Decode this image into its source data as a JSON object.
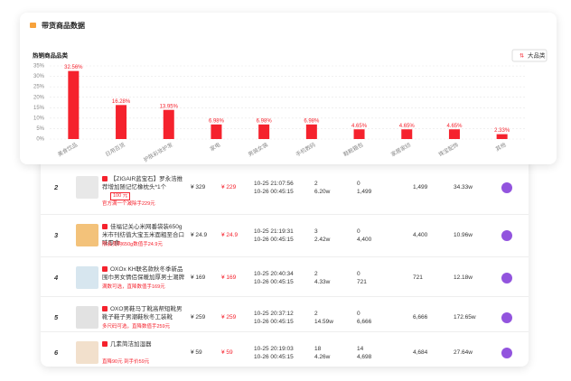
{
  "header": {
    "title": "带货商品数据"
  },
  "chart_data": {
    "type": "bar",
    "title": "热销商品品类",
    "button": "大品类",
    "categories": [
      "美食饮品",
      "日用百货",
      "护肤彩妆护发",
      "家电",
      "男装女装",
      "手机数码",
      "鞋靴箱包",
      "家居家纺",
      "珠宝配饰",
      "其他"
    ],
    "values": [
      32.56,
      16.28,
      13.95,
      6.98,
      6.98,
      6.98,
      4.65,
      4.65,
      4.65,
      2.33
    ],
    "value_labels": [
      "32.56%",
      "16.28%",
      "13.95%",
      "6.98%",
      "6.98%",
      "6.98%",
      "4.65%",
      "4.65%",
      "4.65%",
      "2.33%"
    ],
    "color": "#f5222d",
    "ylim": [
      0,
      35
    ],
    "yticks": [
      {
        "value": 0,
        "label": "0%"
      },
      {
        "value": 5,
        "label": "5%"
      },
      {
        "value": 10,
        "label": "10%"
      },
      {
        "value": 15,
        "label": "15%"
      },
      {
        "value": 20,
        "label": "20%"
      },
      {
        "value": 25,
        "label": "25%"
      },
      {
        "value": 30,
        "label": "30%"
      },
      {
        "value": 35,
        "label": "35%"
      }
    ],
    "grid": true
  },
  "table": {
    "rows": [
      {
        "rank": "2",
        "title": "【ZIGAIR蓝宝石】罗永浩推荐增加随记忆橡枕头*1个",
        "tag": "100 元",
        "promo": "官方满一个减除手229元",
        "price": "¥ 329",
        "deal": "¥ 229",
        "start": "10-25 21:07:56",
        "end": "10-26 00:45:15",
        "a1": "2",
        "a2": "6.20w",
        "b1": "0",
        "b2": "1,499",
        "c": "1,499",
        "d": "34.33w"
      },
      {
        "rank": "3",
        "title": "佳福记关心米网番袋装650g米市刊纺值大宝玉米面粗至合口味零食",
        "promo": "限会员购650g数值手24.9元",
        "price": "¥ 24.9",
        "deal": "¥ 24.9",
        "start": "10-25 21:19:31",
        "end": "10-26 00:45:15",
        "a1": "3",
        "a2": "2.42w",
        "b1": "0",
        "b2": "4,400",
        "c": "4,400",
        "d": "10.96w"
      },
      {
        "rank": "4",
        "title": "OXOx KH联名款秋冬季新品围巾男女情侣保暖加厚男士潮牌",
        "promo": "满数可选，直降数值手169元",
        "price": "¥ 169",
        "deal": "¥ 169",
        "start": "10-25 20:40:34",
        "end": "10-26 00:45:15",
        "a1": "2",
        "a2": "4.33w",
        "b1": "0",
        "b2": "721",
        "c": "721",
        "d": "12.18w"
      },
      {
        "rank": "5",
        "title": "OXO男鞋马丁靴高帮短靴男靴子鞋子男潮鞋秋冬工装靴",
        "promo": "多尺码可选，直降数值手259元",
        "price": "¥ 259",
        "deal": "¥ 259",
        "start": "10-25 20:37:12",
        "end": "10-26 00:45:15",
        "a1": "2",
        "a2": "14.59w",
        "b1": "0",
        "b2": "6,666",
        "c": "6,666",
        "d": "172.65w"
      },
      {
        "rank": "6",
        "title": "几素简洁加湿器",
        "promo": "直降90元 到手价59元",
        "price": "¥ 59",
        "deal": "¥ 59",
        "start": "10-25 20:19:03",
        "end": "10-26 00:45:15",
        "a1": "18",
        "a2": "4.26w",
        "b1": "14",
        "b2": "4,698",
        "c": "4,684",
        "d": "27.64w"
      }
    ]
  }
}
